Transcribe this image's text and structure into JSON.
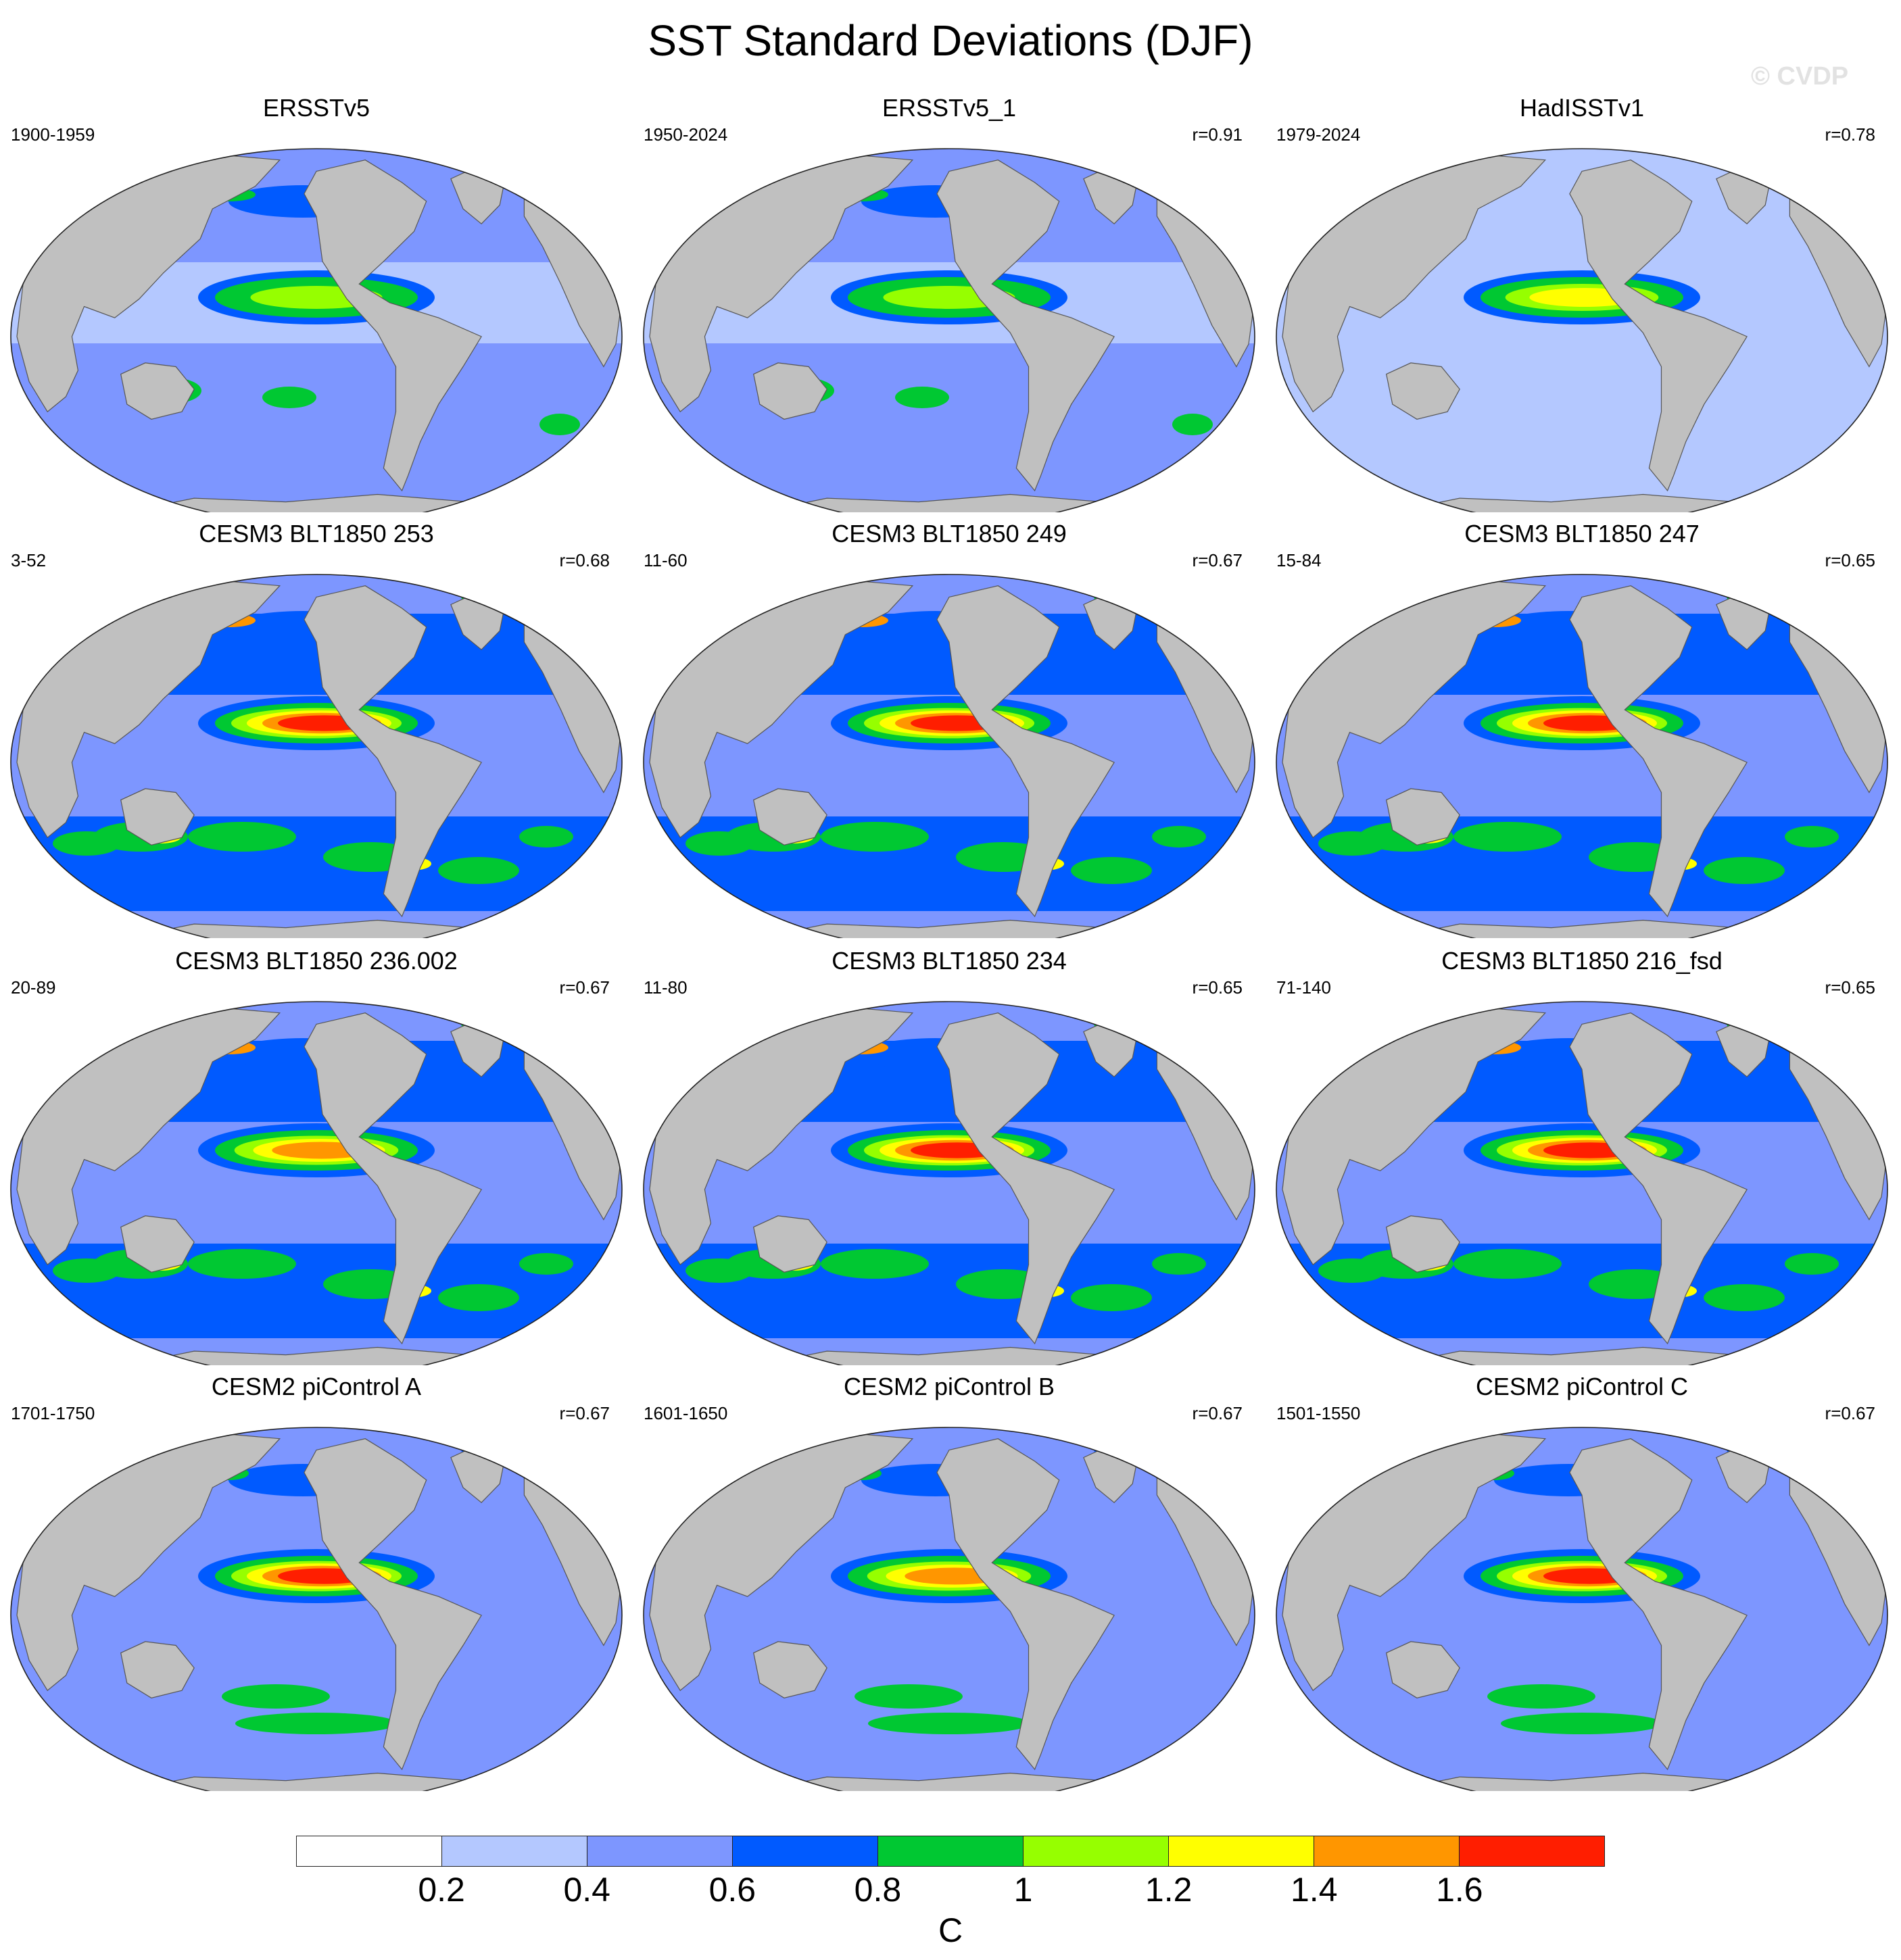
{
  "title": "SST Standard Deviations (DJF)",
  "watermark": "© CVDP",
  "panels": [
    {
      "title": "ERSSTv5",
      "period": "1900-1959",
      "r": "",
      "style": "obs",
      "enso": 1.0
    },
    {
      "title": "ERSSTv5_1",
      "period": "1950-2024",
      "r": "r=0.91",
      "style": "obs",
      "enso": 1.0
    },
    {
      "title": "HadISSTv1",
      "period": "1979-2024",
      "r": "r=0.78",
      "style": "had",
      "enso": 1.2
    },
    {
      "title": "CESM3 BLT1850 253",
      "period": "3-52",
      "r": "r=0.68",
      "style": "cesm3",
      "enso": 1.6
    },
    {
      "title": "CESM3 BLT1850 249",
      "period": "11-60",
      "r": "r=0.67",
      "style": "cesm3",
      "enso": 1.6
    },
    {
      "title": "CESM3 BLT1850 247",
      "period": "15-84",
      "r": "r=0.65",
      "style": "cesm3",
      "enso": 1.6
    },
    {
      "title": "CESM3 BLT1850 236.002",
      "period": "20-89",
      "r": "r=0.67",
      "style": "cesm3",
      "enso": 1.4
    },
    {
      "title": "CESM3 BLT1850 234",
      "period": "11-80",
      "r": "r=0.65",
      "style": "cesm3",
      "enso": 1.6
    },
    {
      "title": "CESM3 BLT1850 216_fsd",
      "period": "71-140",
      "r": "r=0.65",
      "style": "cesm3",
      "enso": 1.6
    },
    {
      "title": "CESM2 piControl A",
      "period": "1701-1750",
      "r": "r=0.67",
      "style": "cesm2",
      "enso": 1.6
    },
    {
      "title": "CESM2 piControl B",
      "period": "1601-1650",
      "r": "r=0.67",
      "style": "cesm2",
      "enso": 1.4
    },
    {
      "title": "CESM2 piControl C",
      "period": "1501-1550",
      "r": "r=0.67",
      "style": "cesm2",
      "enso": 1.6
    }
  ],
  "colorbar": {
    "unit": "C",
    "labels": [
      "0.2",
      "0.4",
      "0.6",
      "0.8",
      "1",
      "1.2",
      "1.4",
      "1.6"
    ],
    "colors": [
      "#ffffff",
      "#b4c8ff",
      "#7d96ff",
      "#005aff",
      "#00c832",
      "#96ff00",
      "#ffff00",
      "#ff9600",
      "#ff1e00"
    ]
  },
  "land_color": "#c0c0c0"
}
